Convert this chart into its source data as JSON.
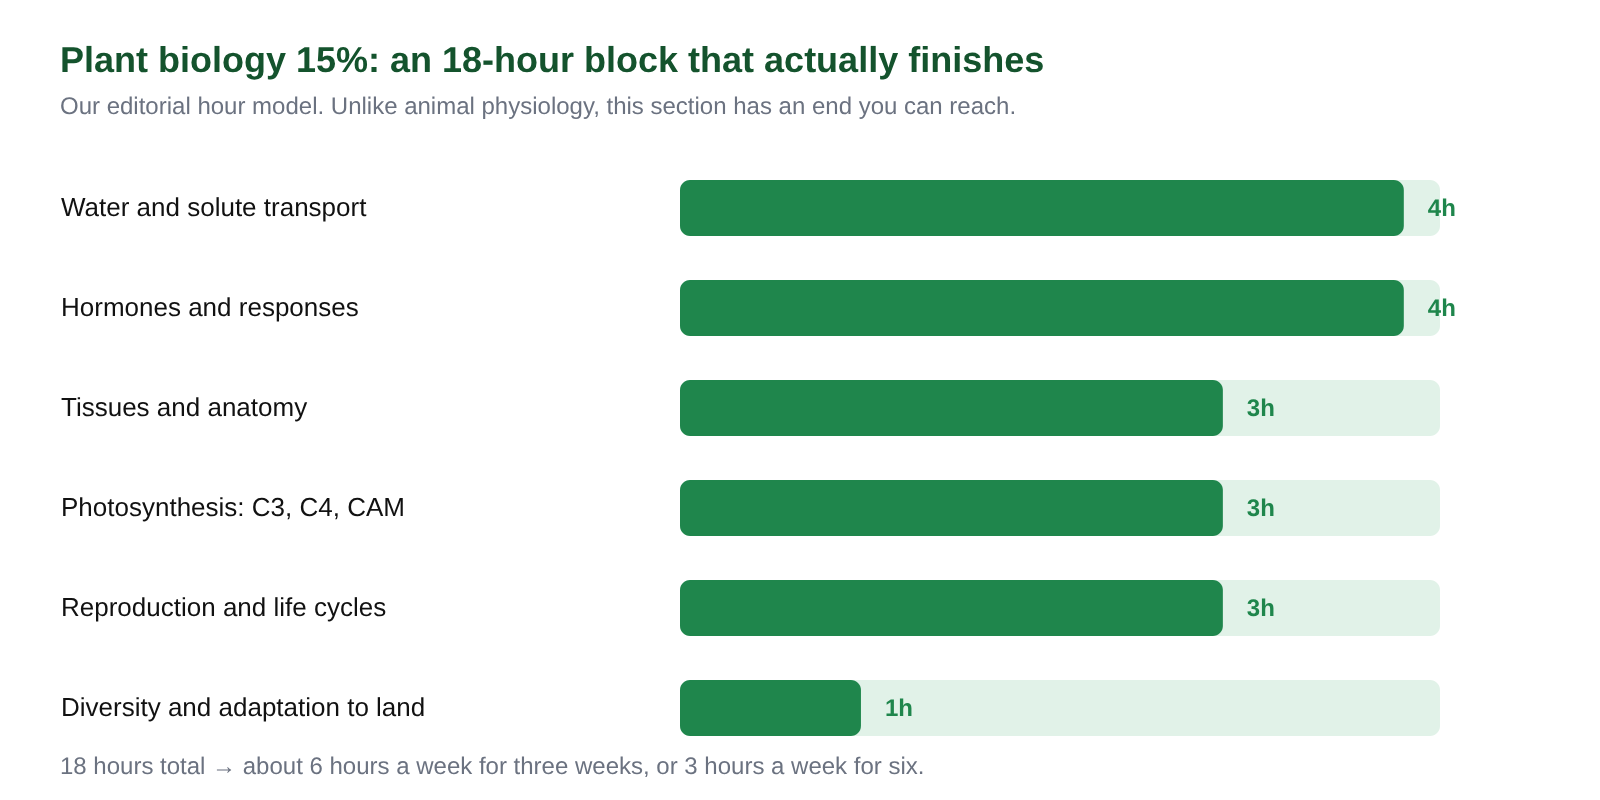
{
  "chart_data": {
    "type": "bar",
    "orientation": "horizontal",
    "title": "Plant biology 15%: an 18-hour block that actually finishes",
    "subtitle": "Our editorial hour model. Unlike animal physiology, this section has an end you can reach.",
    "categories": [
      "Water and solute transport",
      "Hormones and responses",
      "Tissues and anatomy",
      "Photosynthesis: C3, C4, CAM",
      "Reproduction and life cycles",
      "Diversity and adaptation to land"
    ],
    "values": [
      4,
      4,
      3,
      3,
      3,
      1
    ],
    "color": "#1f864c",
    "value_labels": [
      "4h",
      "4h",
      "3h",
      "3h",
      "3h",
      "1h"
    ],
    "xlim": [
      0,
      4.2
    ],
    "tick_labels": "y",
    "bands": [
      {
        "axis": "x",
        "from": 0,
        "to": 4.2,
        "color": "#e1f2e8"
      }
    ],
    "annotations": [
      "18 hours total → about 6 hours a week for three weeks, or 3 hours a week for six."
    ]
  }
}
